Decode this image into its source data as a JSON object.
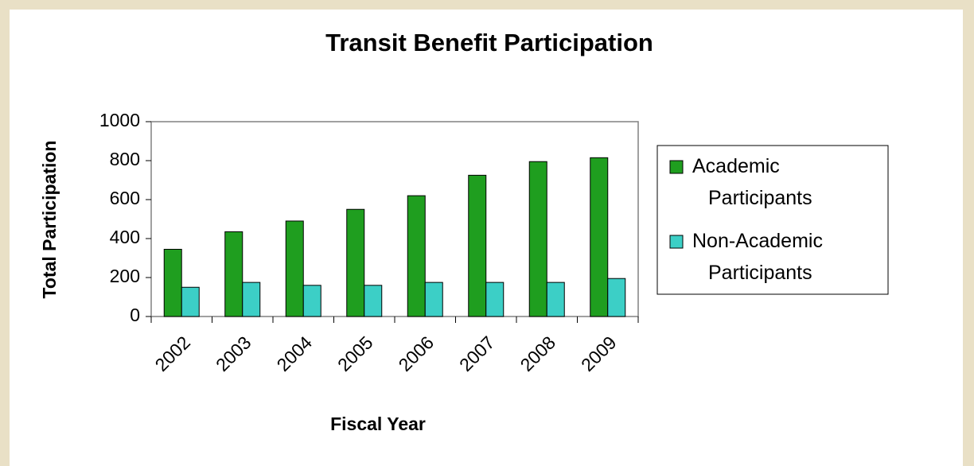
{
  "chart_data": {
    "type": "bar",
    "title": "Transit Benefit Participation",
    "x_label": "Fiscal Year",
    "y_label": "Total Participation",
    "categories": [
      "2002",
      "2003",
      "2004",
      "2005",
      "2006",
      "2007",
      "2008",
      "2009"
    ],
    "series": [
      {
        "name": "Academic Participants",
        "color": "#1f9e1f",
        "values": [
          345,
          435,
          490,
          550,
          620,
          725,
          795,
          815
        ]
      },
      {
        "name": "Non-Academic Participants",
        "color": "#3ccfc6",
        "values": [
          150,
          175,
          160,
          160,
          175,
          175,
          175,
          195
        ]
      }
    ],
    "ylim": [
      0,
      1000
    ],
    "yticks": [
      0,
      200,
      400,
      600,
      800,
      1000
    ],
    "grid": false,
    "legend": "right"
  }
}
